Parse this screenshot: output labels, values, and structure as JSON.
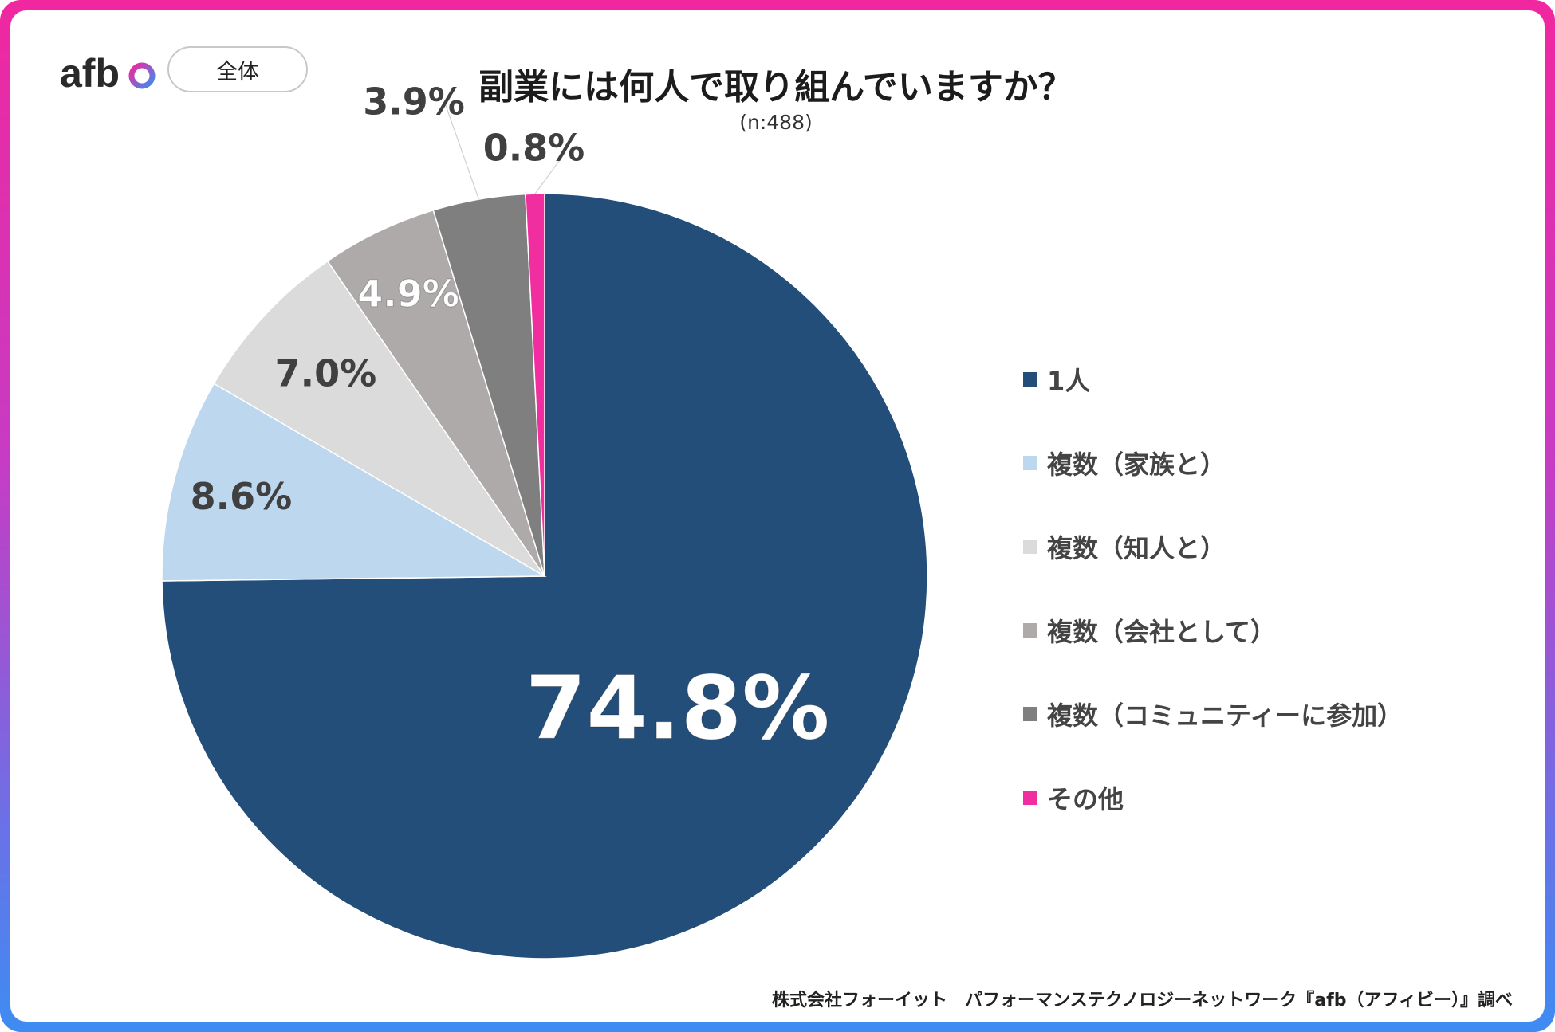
{
  "header": {
    "logo_text": "afb",
    "scope_badge": "全体"
  },
  "colors": {
    "slice_1": "#234e7a",
    "slice_2": "#bdd7ee",
    "slice_3": "#dbdbdb",
    "slice_4": "#aeaaaa",
    "slice_5": "#7f7f7f",
    "slice_6": "#f02ea0"
  },
  "chart_data": {
    "type": "pie",
    "title": "副業には何人で取り組んでいますか？",
    "subtitle": "(n:488)",
    "slices": [
      {
        "label": "1人",
        "value": 74.8,
        "display": "74.8%"
      },
      {
        "label": "複数（家族と）",
        "value": 8.6,
        "display": "8.6%"
      },
      {
        "label": "複数（知人と）",
        "value": 7.0,
        "display": "7.0%"
      },
      {
        "label": "複数（会社として）",
        "value": 4.9,
        "display": "4.9%"
      },
      {
        "label": "複数（コミュニティーに参加）",
        "value": 3.9,
        "display": "3.9%"
      },
      {
        "label": "その他",
        "value": 0.8,
        "display": "0.8%"
      }
    ],
    "start_angle": "12 o'clock",
    "direction": "clockwise",
    "legend_position": "right"
  },
  "source": "株式会社フォーイット　パフォーマンステクノロジーネットワーク『afb（アフィビー）』調べ"
}
